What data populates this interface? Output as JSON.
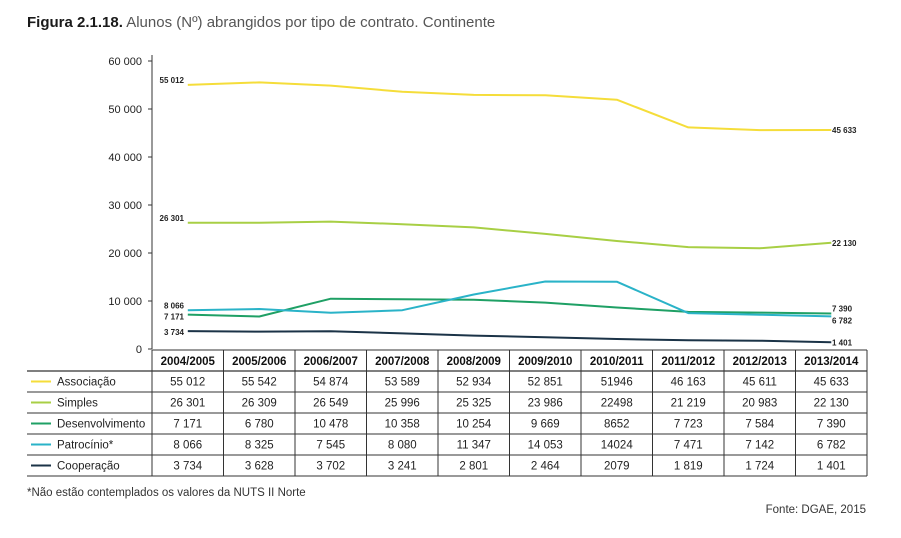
{
  "title": {
    "bold": "Figura 2.1.18.",
    "text": " Alunos (Nº) abrangidos por tipo de contrato. Continente"
  },
  "footnote": "*Não estão contemplados os valores da NUTS II Norte",
  "source": "Fonte: DGAE, 2015",
  "chart_data": {
    "type": "line",
    "title": "Alunos (Nº) abrangidos por tipo de contrato. Continente",
    "xlabel": "",
    "ylabel": "",
    "ylim": [
      0,
      60000
    ],
    "yticks": [
      "0",
      "10 000",
      "20 000",
      "30 000",
      "40 000",
      "50 000",
      "60 000"
    ],
    "ytick_values": [
      0,
      10000,
      20000,
      30000,
      40000,
      50000,
      60000
    ],
    "grid": false,
    "legend": "table-left",
    "categories": [
      "2004/2005",
      "2005/2006",
      "2006/2007",
      "2007/2008",
      "2008/2009",
      "2009/2010",
      "2010/2011",
      "2011/2012",
      "2012/2013",
      "2013/2014"
    ],
    "series": [
      {
        "name": "Associação",
        "color": "#f5dd3a",
        "values": [
          55012,
          55542,
          54874,
          53589,
          52934,
          52851,
          51946,
          46163,
          45611,
          45633
        ],
        "table": [
          "55 012",
          "55 542",
          "54 874",
          "53 589",
          "52 934",
          "52 851",
          "51946",
          "46 163",
          "45 611",
          "45 633"
        ],
        "first_label": "55 012",
        "last_label": "45 633"
      },
      {
        "name": "Simples",
        "color": "#a8cf45",
        "values": [
          26301,
          26309,
          26549,
          25996,
          25325,
          23986,
          22498,
          21219,
          20983,
          22130
        ],
        "table": [
          "26 301",
          "26 309",
          "26 549",
          "25 996",
          "25 325",
          "23 986",
          "22498",
          "21 219",
          "20 983",
          "22 130"
        ],
        "first_label": "26 301",
        "last_label": "22 130"
      },
      {
        "name": "Desenvolvimento",
        "color": "#1fa065",
        "values": [
          7171,
          6780,
          10478,
          10358,
          10254,
          9669,
          8652,
          7723,
          7584,
          7390
        ],
        "table": [
          "7 171",
          "6 780",
          "10 478",
          "10 358",
          "10 254",
          "9 669",
          "8652",
          "7 723",
          "7 584",
          "7 390"
        ],
        "first_label": "7 171",
        "last_label": "7 390"
      },
      {
        "name": "Patrocínio*",
        "color": "#2ab3c8",
        "values": [
          8066,
          8325,
          7545,
          8080,
          11347,
          14053,
          14024,
          7471,
          7142,
          6782
        ],
        "table": [
          "8 066",
          "8 325",
          "7 545",
          "8 080",
          "11 347",
          "14 053",
          "14024",
          "7 471",
          "7 142",
          "6 782"
        ],
        "first_label": "8 066",
        "last_label": "6 782"
      },
      {
        "name": "Cooperação",
        "color": "#1b3347",
        "values": [
          3734,
          3628,
          3702,
          3241,
          2801,
          2464,
          2079,
          1819,
          1724,
          1401
        ],
        "table": [
          "3 734",
          "3 628",
          "3 702",
          "3 241",
          "2 801",
          "2 464",
          "2079",
          "1 819",
          "1 724",
          "1 401"
        ],
        "first_label": "3 734",
        "last_label": "1 401"
      }
    ]
  }
}
